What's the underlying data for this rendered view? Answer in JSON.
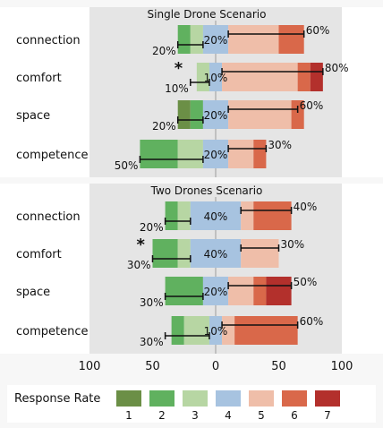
{
  "chart_data": {
    "type": "bar",
    "subtype": "diverging-stacked-likert",
    "x_axis": {
      "ticks": [
        "100",
        "50",
        "0",
        "50",
        "100"
      ],
      "xlim": [
        -100,
        100
      ]
    },
    "legend": {
      "title": "Response Rate",
      "placement": "bottom",
      "levels": [
        "1",
        "2",
        "3",
        "4",
        "5",
        "6",
        "7"
      ],
      "colors": [
        "#6b8f46",
        "#60b15f",
        "#b7d6a3",
        "#a7c3e0",
        "#efbea9",
        "#d9684a",
        "#b3302c"
      ]
    },
    "panels": [
      {
        "title": "Single Drone Scenario",
        "categories": [
          {
            "name": "connection",
            "segments": [
              0,
              10,
              10,
              20,
              40,
              20,
              0
            ],
            "left_label": "20%",
            "center_label": "20%",
            "right_label": "60%",
            "error_left": [
              -30,
              -10
            ],
            "error_right": [
              10,
              70
            ],
            "star": false
          },
          {
            "name": "comfort",
            "segments": [
              0,
              0,
              10,
              10,
              60,
              10,
              10
            ],
            "left_label": "10%",
            "center_label": "10%",
            "right_label": "80%",
            "error_left": [
              -20,
              -5
            ],
            "error_right": [
              5,
              85
            ],
            "star": true
          },
          {
            "name": "space",
            "segments": [
              10,
              10,
              0,
              20,
              50,
              10,
              0
            ],
            "left_label": "20%",
            "center_label": "20%",
            "right_label": "60%",
            "error_left": [
              -30,
              -10
            ],
            "error_right": [
              10,
              65
            ],
            "star": false
          },
          {
            "name": "competence",
            "segments": [
              0,
              30,
              20,
              20,
              20,
              10,
              0
            ],
            "left_label": "50%",
            "center_label": "20%",
            "right_label": "30%",
            "error_left": [
              -60,
              -10
            ],
            "error_right": [
              10,
              40
            ],
            "star": false
          }
        ]
      },
      {
        "title": "Two Drones Scenario",
        "categories": [
          {
            "name": "connection",
            "segments": [
              0,
              10,
              10,
              40,
              10,
              30,
              0
            ],
            "left_label": "20%",
            "center_label": "40%",
            "right_label": "40%",
            "error_left": [
              -40,
              -20
            ],
            "error_right": [
              20,
              60
            ],
            "star": false
          },
          {
            "name": "comfort",
            "segments": [
              0,
              20,
              10,
              40,
              30,
              0,
              0
            ],
            "left_label": "30%",
            "center_label": "40%",
            "right_label": "30%",
            "error_left": [
              -50,
              -20
            ],
            "error_right": [
              20,
              50
            ],
            "star": true
          },
          {
            "name": "space",
            "segments": [
              0,
              30,
              0,
              20,
              20,
              10,
              20
            ],
            "left_label": "30%",
            "center_label": "20%",
            "right_label": "50%",
            "error_left": [
              -40,
              -10
            ],
            "error_right": [
              10,
              60
            ],
            "star": false
          },
          {
            "name": "competence",
            "segments": [
              0,
              10,
              20,
              10,
              10,
              50,
              0
            ],
            "left_label": "30%",
            "center_label": "10%",
            "right_label": "60%",
            "error_left": [
              -40,
              -5
            ],
            "error_right": [
              5,
              65
            ],
            "star": false
          }
        ]
      }
    ]
  }
}
